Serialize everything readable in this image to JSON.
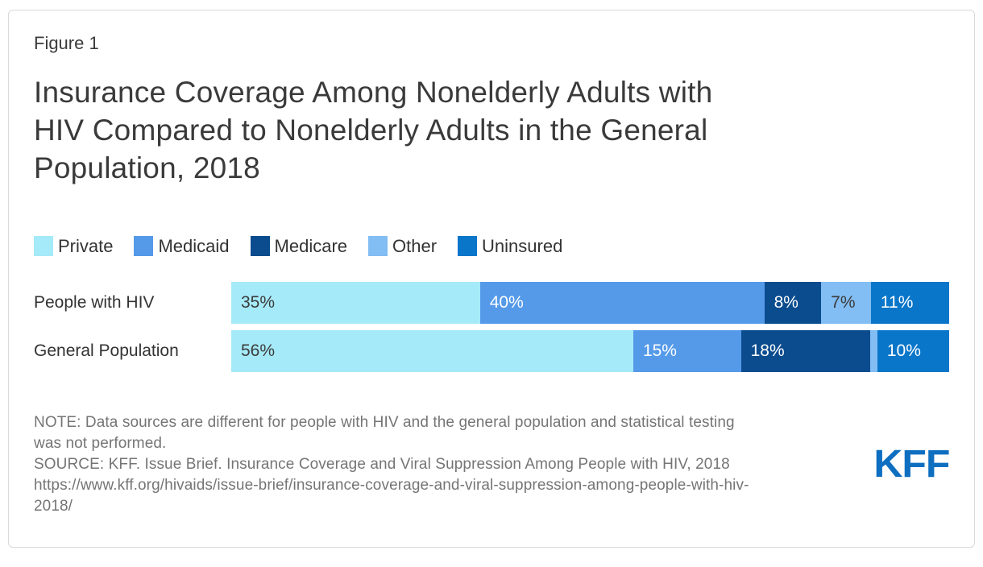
{
  "figure_label": "Figure 1",
  "title_lines": [
    "Insurance Coverage Among Nonelderly Adults with",
    "HIV Compared to Nonelderly Adults in the General",
    "Population, 2018"
  ],
  "note_lines": [
    "NOTE: Data sources are different for people with HIV and the general population and statistical testing",
    "was not performed.",
    "SOURCE: KFF. Issue Brief. Insurance Coverage and Viral Suppression Among People with HIV, 2018",
    "https://www.kff.org/hivaids/issue-brief/insurance-coverage-and-viral-suppression-among-people-with-hiv-",
    "2018/"
  ],
  "logo_text": "KFF",
  "colors": {
    "logo_blue": "#0E6FC1",
    "title_text": "#3A3A3A",
    "note_text": "#757575",
    "card_border": "#D9D9D9"
  },
  "chart_data": {
    "type": "bar",
    "orientation": "horizontal-stacked",
    "value_unit": "%",
    "xlim": [
      0,
      100
    ],
    "legend_position": "top",
    "categories": [
      "People with HIV",
      "General Population"
    ],
    "series": [
      {
        "name": "Private",
        "color": "#A5EAF8",
        "label_text_color": "#3B3B3B",
        "values": [
          35,
          56
        ],
        "labels": [
          "35%",
          "56%"
        ]
      },
      {
        "name": "Medicaid",
        "color": "#559AE9",
        "label_text_color": "#FFFFFF",
        "values": [
          40,
          15
        ],
        "labels": [
          "40%",
          "15%"
        ]
      },
      {
        "name": "Medicare",
        "color": "#0B4C8E",
        "label_text_color": "#FFFFFF",
        "values": [
          8,
          18
        ],
        "labels": [
          "8%",
          "18%"
        ]
      },
      {
        "name": "Other",
        "color": "#82BDF3",
        "label_text_color": "#3B3B3B",
        "values": [
          7,
          1
        ],
        "labels": [
          "7%",
          ""
        ]
      },
      {
        "name": "Uninsured",
        "color": "#0A76C9",
        "label_text_color": "#FFFFFF",
        "values": [
          11,
          10
        ],
        "labels": [
          "11%",
          "10%"
        ]
      }
    ]
  }
}
